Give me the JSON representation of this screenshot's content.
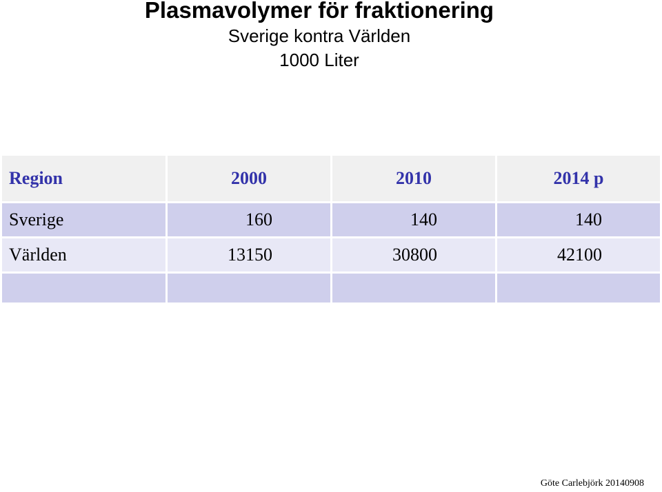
{
  "header": {
    "title": "Plasmavolymer för fraktionering",
    "subtitle": "Sverige kontra Världen",
    "unit": "1000 Liter"
  },
  "table": {
    "columns": [
      "Region",
      "2000",
      "2010",
      "2014 p"
    ],
    "rows": [
      {
        "region": "Sverige",
        "v2000": "160",
        "v2010": "140",
        "v2014": "140"
      },
      {
        "region": "Världen",
        "v2000": "13150",
        "v2010": "30800",
        "v2014": "42100"
      },
      {
        "region": "",
        "v2000": "",
        "v2010": "",
        "v2014": ""
      }
    ]
  },
  "footer": {
    "author_note": "Göte Carlebjörk 20140908"
  }
}
